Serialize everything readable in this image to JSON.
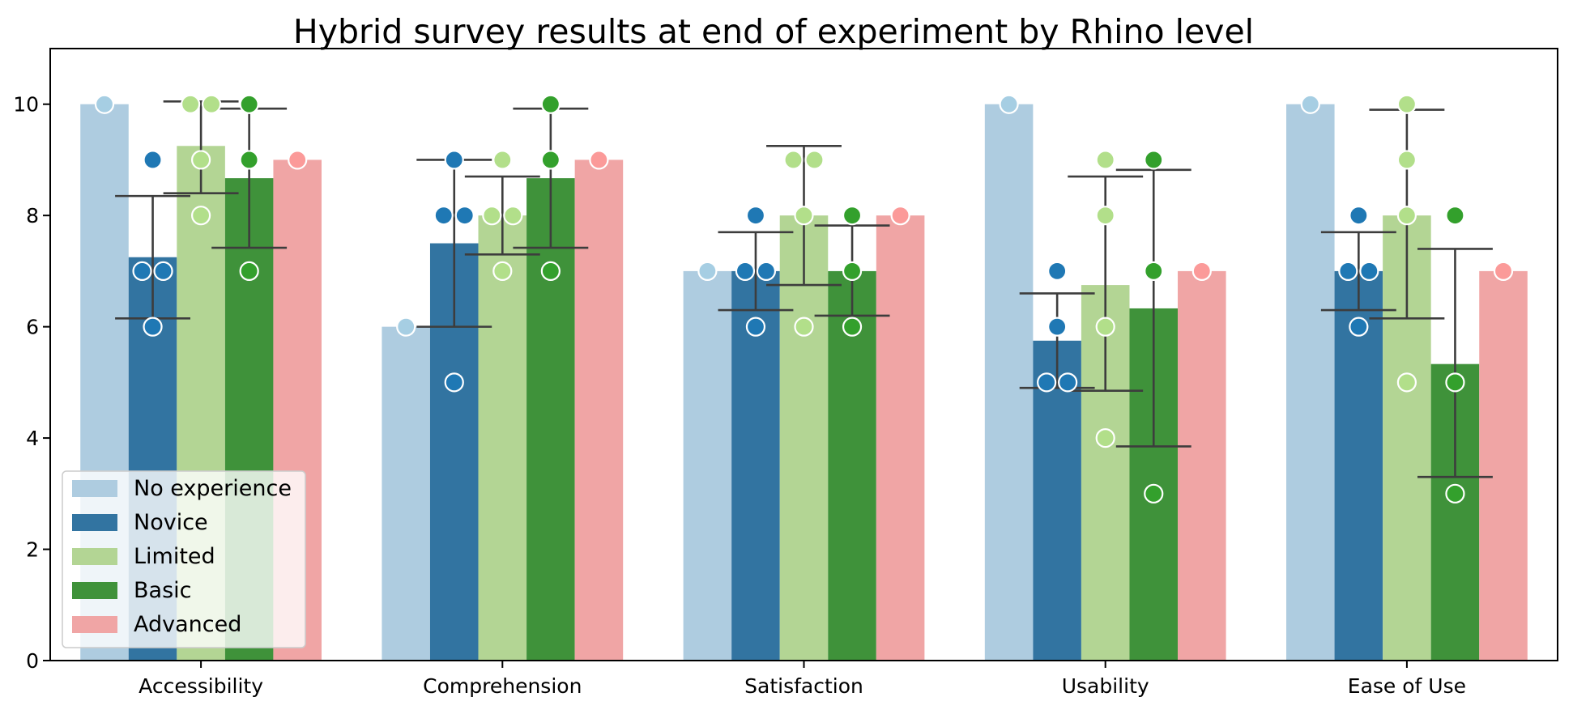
{
  "chart_data": {
    "type": "bar",
    "title": "Hybrid survey results at end of experiment by Rhino level",
    "xlabel": "",
    "ylabel": "",
    "ylim": [
      0,
      11
    ],
    "yticks": [
      0,
      2,
      4,
      6,
      8,
      10
    ],
    "categories": [
      "Accessibility",
      "Comprehension",
      "Satisfaction",
      "Usability",
      "Ease of Use"
    ],
    "grid": false,
    "legend_position": "lower-left",
    "series": [
      {
        "name": "No experience",
        "bar_color": "#aecce0",
        "point_color": "#a6cee3",
        "values": [
          10,
          6,
          7,
          10,
          10
        ],
        "err_low": [
          null,
          null,
          null,
          null,
          null
        ],
        "err_high": [
          null,
          null,
          null,
          null,
          null
        ],
        "points": [
          [
            10
          ],
          [
            6
          ],
          [
            7
          ],
          [
            10
          ],
          [
            10
          ]
        ]
      },
      {
        "name": "Novice",
        "bar_color": "#3274a1",
        "point_color": "#1f78b4",
        "values": [
          7.25,
          7.5,
          7.0,
          5.75,
          7.0
        ],
        "err_low": [
          6.15,
          6.0,
          6.3,
          4.9,
          6.3
        ],
        "err_high": [
          8.35,
          9.0,
          7.7,
          6.6,
          7.7
        ],
        "points": [
          [
            9,
            7,
            7,
            6
          ],
          [
            9,
            8,
            8,
            5
          ],
          [
            8,
            7,
            7,
            6
          ],
          [
            7,
            6,
            5,
            5
          ],
          [
            8,
            7,
            7,
            6
          ]
        ]
      },
      {
        "name": "Limited",
        "bar_color": "#b3d594",
        "point_color": "#b2df8a",
        "values": [
          9.25,
          8.0,
          8.0,
          6.75,
          8.0
        ],
        "err_low": [
          8.4,
          7.3,
          6.75,
          4.85,
          6.15
        ],
        "err_high": [
          10.05,
          8.7,
          9.25,
          8.7,
          9.9
        ],
        "points": [
          [
            10,
            10,
            9,
            8
          ],
          [
            9,
            8,
            8,
            7
          ],
          [
            9,
            9,
            8,
            6
          ],
          [
            9,
            8,
            6,
            4
          ],
          [
            10,
            9,
            8,
            5
          ]
        ]
      },
      {
        "name": "Basic",
        "bar_color": "#3f923a",
        "point_color": "#33a02c",
        "values": [
          8.67,
          8.67,
          7.0,
          6.33,
          5.33
        ],
        "err_low": [
          7.42,
          7.42,
          6.2,
          3.85,
          3.3
        ],
        "err_high": [
          9.92,
          9.92,
          7.82,
          8.82,
          7.4
        ],
        "points": [
          [
            10,
            9,
            7
          ],
          [
            10,
            9,
            7
          ],
          [
            8,
            7,
            6
          ],
          [
            9,
            7,
            3
          ],
          [
            8,
            5,
            3
          ]
        ]
      },
      {
        "name": "Advanced",
        "bar_color": "#f0a5a5",
        "point_color": "#fb9a99",
        "values": [
          9,
          9,
          8,
          7,
          7
        ],
        "err_low": [
          null,
          null,
          null,
          null,
          null
        ],
        "err_high": [
          null,
          null,
          null,
          null,
          null
        ],
        "points": [
          [
            9
          ],
          [
            9
          ],
          [
            8
          ],
          [
            7
          ],
          [
            7
          ]
        ]
      }
    ]
  }
}
